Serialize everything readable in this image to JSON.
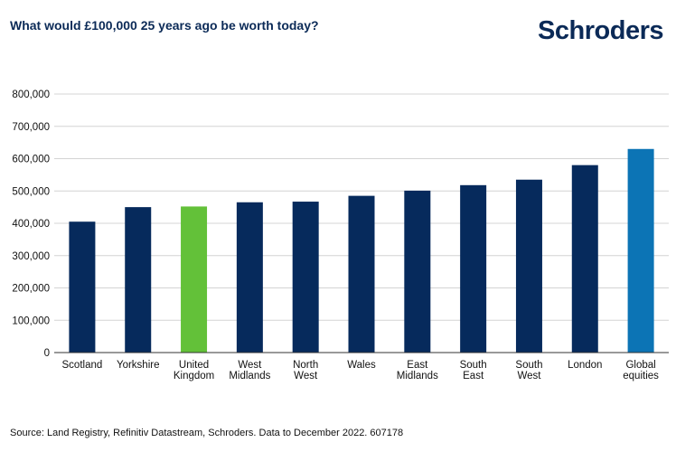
{
  "header": {
    "title": "What would £100,000 25 years ago be worth today?",
    "brand": "Schroders"
  },
  "footer": {
    "source": "Source: Land Registry, Refinitiv Datastream, Schroders. Data to December 2022. 607178"
  },
  "colors": {
    "default_bar": "#062a5c",
    "highlight_uk": "#63c139",
    "highlight_global": "#0c74b5",
    "grid": "#d4d4d4",
    "axis": "#333333"
  },
  "chart_data": {
    "type": "bar",
    "title": "What would £100,000 25 years ago be worth today?",
    "xlabel": "",
    "ylabel": "",
    "ylim": [
      0,
      800000
    ],
    "yticks": [
      0,
      100000,
      200000,
      300000,
      400000,
      500000,
      600000,
      700000,
      800000
    ],
    "ytick_labels": [
      "0",
      "100,000",
      "200,000",
      "300,000",
      "400,000",
      "500,000",
      "600,000",
      "700,000",
      "800,000"
    ],
    "categories": [
      [
        "Scotland"
      ],
      [
        "Yorkshire"
      ],
      [
        "United",
        "Kingdom"
      ],
      [
        "West",
        "Midlands"
      ],
      [
        "North",
        "West"
      ],
      [
        "Wales"
      ],
      [
        "East",
        "Midlands"
      ],
      [
        "South",
        "East"
      ],
      [
        "South",
        "West"
      ],
      [
        "London"
      ],
      [
        "Global",
        "equities"
      ]
    ],
    "values": [
      405000,
      450000,
      452000,
      465000,
      467000,
      485000,
      501000,
      518000,
      535000,
      580000,
      630000
    ],
    "bar_colors": [
      "default_bar",
      "default_bar",
      "highlight_uk",
      "default_bar",
      "default_bar",
      "default_bar",
      "default_bar",
      "default_bar",
      "default_bar",
      "default_bar",
      "highlight_global"
    ],
    "grid": true,
    "legend": "none"
  }
}
